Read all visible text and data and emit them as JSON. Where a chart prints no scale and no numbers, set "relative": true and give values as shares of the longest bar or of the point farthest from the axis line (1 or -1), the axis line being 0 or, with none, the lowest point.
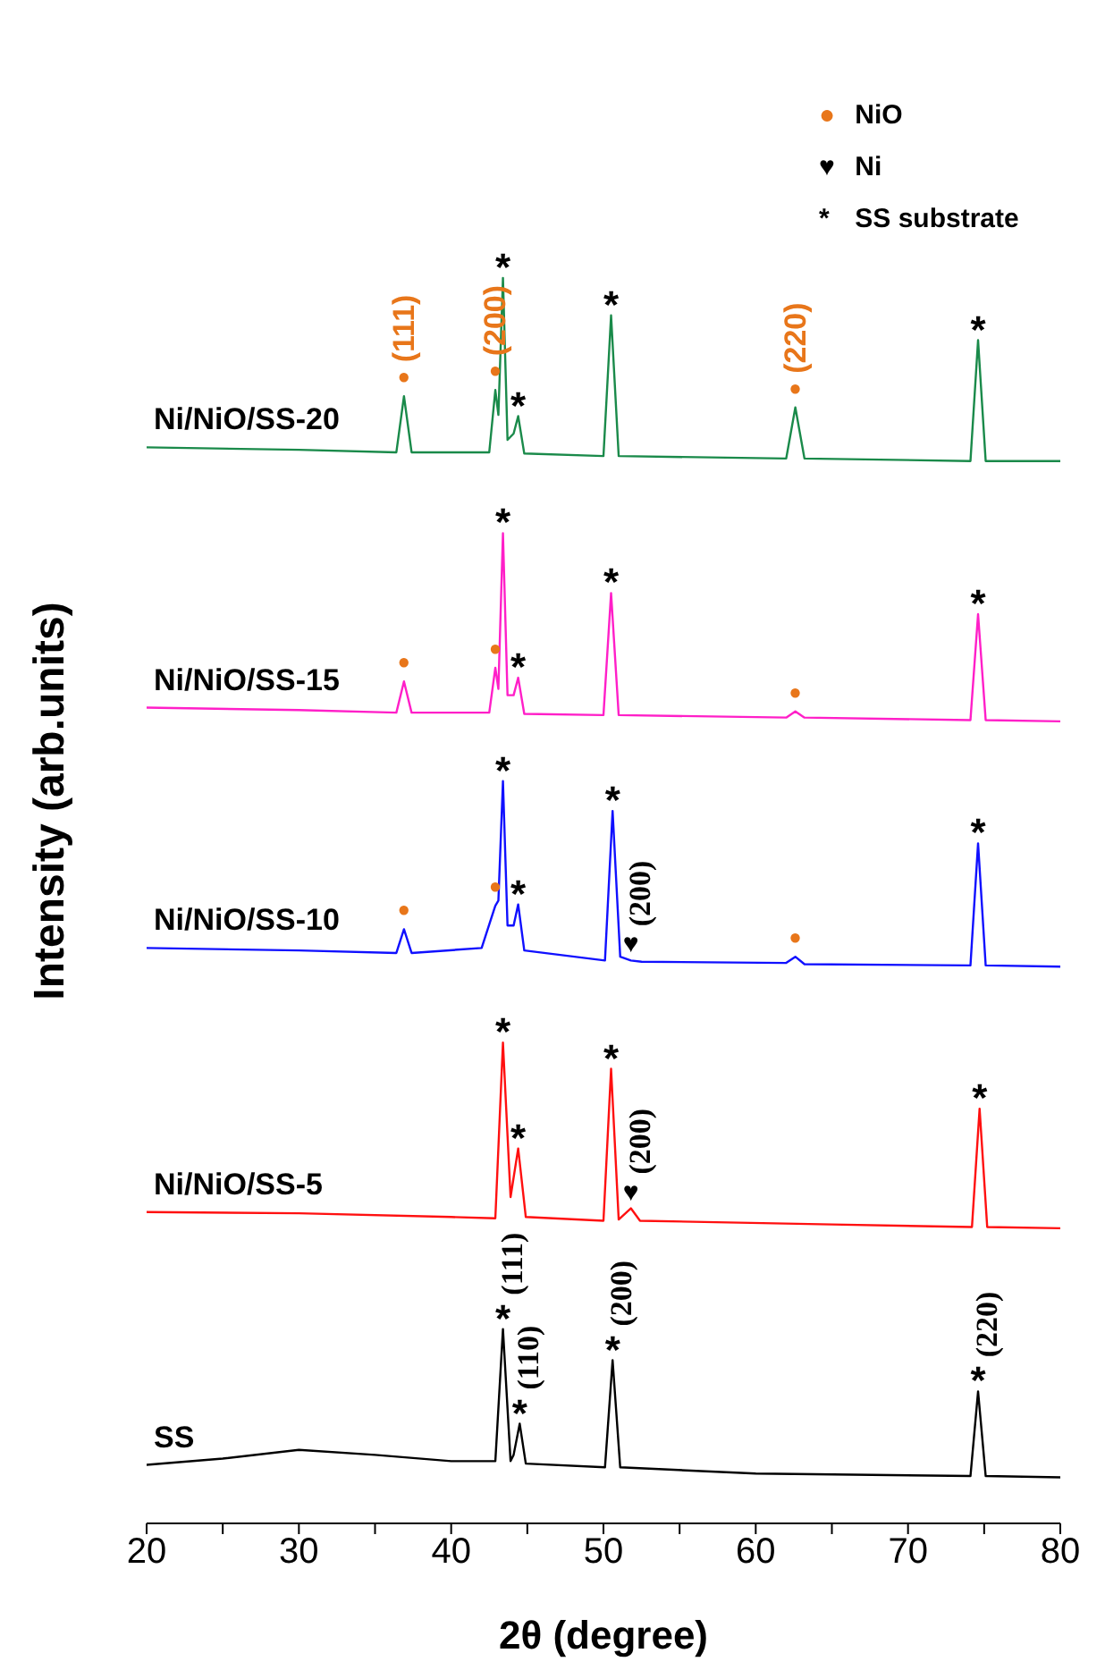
{
  "chart_data": {
    "type": "line",
    "relative": true,
    "xlabel": "2θ (degree)",
    "ylabel": "Intensity (arb.units)",
    "xlim": [
      20,
      80
    ],
    "xticks": [
      20,
      {
        "value": 25,
        "label": null
      },
      30,
      {
        "value": 35,
        "label": null
      },
      40,
      {
        "value": 45,
        "label": null
      },
      50,
      {
        "value": 55,
        "label": null
      },
      60,
      {
        "value": 65,
        "label": null
      },
      70,
      {
        "value": 75,
        "label": null
      },
      80
    ],
    "tick_labels": "x",
    "marker": "none",
    "line_style": "solid",
    "series": [
      {
        "name": "Ni/NiO/SS-20",
        "color": "#1a8a4a",
        "x": [
          20,
          30,
          36.4,
          36.9,
          37.4,
          42.5,
          42.9,
          43.1,
          43.4,
          43.7,
          44.1,
          44.4,
          44.8,
          50.0,
          50.5,
          51.0,
          62.0,
          62.6,
          63.2,
          74.1,
          74.6,
          75.1,
          80
        ],
        "values": [
          0.864,
          0.862,
          0.86,
          0.905,
          0.86,
          0.86,
          0.91,
          0.89,
          1.0,
          0.87,
          0.875,
          0.889,
          0.859,
          0.857,
          0.97,
          0.857,
          0.855,
          0.896,
          0.855,
          0.853,
          0.95,
          0.853,
          0.853
        ]
      },
      {
        "name": "Ni/NiO/SS-15",
        "color": "#ff1fc8",
        "x": [
          20,
          30,
          36.4,
          36.9,
          37.4,
          42.5,
          42.9,
          43.1,
          43.4,
          43.7,
          44.1,
          44.4,
          44.8,
          50.0,
          50.5,
          51.0,
          62.0,
          62.6,
          63.2,
          74.1,
          74.6,
          75.1,
          80
        ],
        "values": [
          0.655,
          0.653,
          0.651,
          0.676,
          0.651,
          0.651,
          0.687,
          0.67,
          0.795,
          0.665,
          0.665,
          0.679,
          0.65,
          0.649,
          0.747,
          0.649,
          0.647,
          0.652,
          0.647,
          0.645,
          0.73,
          0.645,
          0.644
        ]
      },
      {
        "name": "Ni/NiO/SS-10",
        "color": "#1010ff",
        "x": [
          20,
          30,
          36.4,
          36.9,
          37.4,
          42.0,
          42.9,
          43.1,
          43.4,
          43.7,
          44.1,
          44.4,
          44.8,
          50.1,
          50.6,
          51.1,
          51.8,
          52.5,
          62.0,
          62.6,
          63.2,
          74.1,
          74.6,
          75.1,
          80
        ],
        "values": [
          0.462,
          0.46,
          0.458,
          0.477,
          0.458,
          0.462,
          0.496,
          0.5,
          0.596,
          0.48,
          0.48,
          0.497,
          0.46,
          0.452,
          0.572,
          0.455,
          0.452,
          0.451,
          0.45,
          0.455,
          0.449,
          0.448,
          0.546,
          0.448,
          0.447
        ]
      },
      {
        "name": "Ni/NiO/SS-5",
        "color": "#ff1010",
        "x": [
          20,
          30,
          40,
          42.9,
          43.4,
          43.9,
          44.4,
          44.9,
          50.0,
          50.5,
          51.0,
          51.8,
          52.4,
          65,
          74.2,
          74.7,
          75.2,
          80
        ],
        "values": [
          0.25,
          0.249,
          0.246,
          0.245,
          0.386,
          0.262,
          0.301,
          0.246,
          0.243,
          0.365,
          0.244,
          0.253,
          0.243,
          0.24,
          0.238,
          0.333,
          0.238,
          0.237
        ]
      },
      {
        "name": "SS",
        "color": "#000000",
        "x": [
          20,
          25,
          30,
          35,
          40,
          42.9,
          43.4,
          43.9,
          44.1,
          44.5,
          44.9,
          50.1,
          50.6,
          51.1,
          60,
          74.1,
          74.6,
          75.1,
          80
        ],
        "values": [
          0.047,
          0.052,
          0.059,
          0.055,
          0.05,
          0.05,
          0.156,
          0.05,
          0.055,
          0.08,
          0.048,
          0.045,
          0.131,
          0.045,
          0.04,
          0.038,
          0.106,
          0.038,
          0.037
        ]
      }
    ],
    "annotations": [
      "● NiO",
      "♥ Ni",
      "* SS substrate",
      {
        "text": "●",
        "x": 36.9,
        "y": 0.905
      },
      {
        "text": "(111)",
        "x": 36.9,
        "y": 0.905
      },
      {
        "text": "●",
        "x": 42.9,
        "y": 0.91
      },
      {
        "text": "(200)",
        "x": 42.9,
        "y": 0.91
      },
      {
        "text": "*",
        "x": 43.4,
        "y": 1.0
      },
      {
        "text": "*",
        "x": 44.4,
        "y": 0.889
      },
      {
        "text": "*",
        "x": 50.5,
        "y": 0.97
      },
      {
        "text": "●",
        "x": 62.6,
        "y": 0.896
      },
      {
        "text": "(220)",
        "x": 62.6,
        "y": 0.896
      },
      {
        "text": "*",
        "x": 74.6,
        "y": 0.95
      },
      {
        "text": "●",
        "x": 36.9,
        "y": 0.676
      },
      {
        "text": "●",
        "x": 42.9,
        "y": 0.687
      },
      {
        "text": "*",
        "x": 43.4,
        "y": 0.795
      },
      {
        "text": "*",
        "x": 44.4,
        "y": 0.679
      },
      {
        "text": "*",
        "x": 50.5,
        "y": 0.747
      },
      {
        "text": "●",
        "x": 62.6,
        "y": 0.652
      },
      {
        "text": "*",
        "x": 74.6,
        "y": 0.73
      },
      {
        "text": "●",
        "x": 36.9,
        "y": 0.477
      },
      {
        "text": "●",
        "x": 42.9,
        "y": 0.496
      },
      {
        "text": "*",
        "x": 43.4,
        "y": 0.596
      },
      {
        "text": "*",
        "x": 44.4,
        "y": 0.497
      },
      {
        "text": "*",
        "x": 50.6,
        "y": 0.572
      },
      {
        "text": "♥",
        "x": 51.8,
        "y": 0.452
      },
      {
        "text": "(200)",
        "x": 51.8,
        "y": 0.452
      },
      {
        "text": "●",
        "x": 62.6,
        "y": 0.455
      },
      {
        "text": "*",
        "x": 74.6,
        "y": 0.546
      },
      {
        "text": "*",
        "x": 43.4,
        "y": 0.386
      },
      {
        "text": "*",
        "x": 44.4,
        "y": 0.301
      },
      {
        "text": "*",
        "x": 50.5,
        "y": 0.365
      },
      {
        "text": "♥",
        "x": 51.8,
        "y": 0.253
      },
      {
        "text": "(200)",
        "x": 51.8,
        "y": 0.253
      },
      {
        "text": "*",
        "x": 74.7,
        "y": 0.333
      },
      {
        "text": "*",
        "x": 43.4,
        "y": 0.156
      },
      {
        "text": "(111)",
        "x": 43.4,
        "y": 0.156
      },
      {
        "text": "*",
        "x": 44.5,
        "y": 0.08
      },
      {
        "text": "(110)",
        "x": 44.5,
        "y": 0.08
      },
      {
        "text": "*",
        "x": 50.6,
        "y": 0.131
      },
      {
        "text": "(200)",
        "x": 50.6,
        "y": 0.131
      },
      {
        "text": "*",
        "x": 74.6,
        "y": 0.106
      },
      {
        "text": "(220)",
        "x": 74.6,
        "y": 0.106
      }
    ]
  }
}
